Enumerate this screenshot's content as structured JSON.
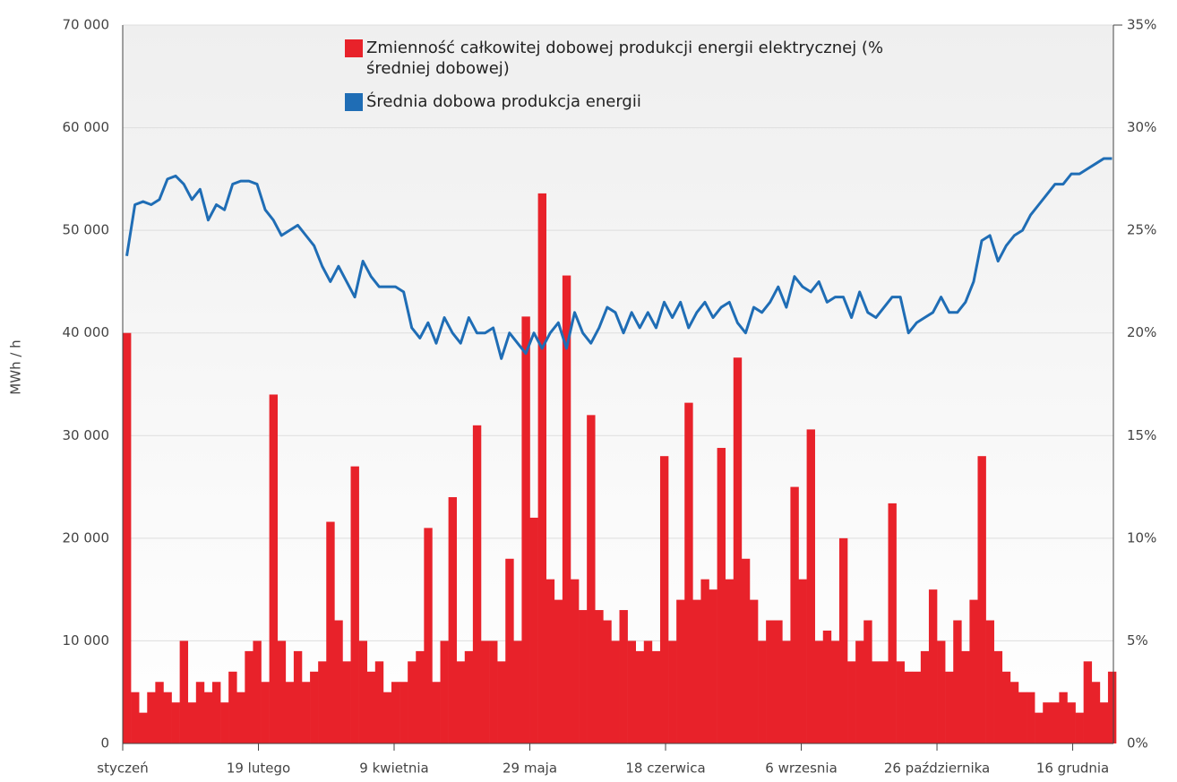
{
  "chart_data": {
    "type": "bar-line",
    "y_label": "MWh / h",
    "xlim": [
      0,
      365
    ],
    "xticks": [
      {
        "value": 0,
        "label": "styczeń"
      },
      {
        "value": 50,
        "label": "19 lutego"
      },
      {
        "value": 100,
        "label": "9 kwietnia"
      },
      {
        "value": 150,
        "label": "29 maja"
      },
      {
        "value": 200,
        "label": "18 czerwica"
      },
      {
        "value": 250,
        "label": "6 wrzesnia"
      },
      {
        "value": 300,
        "label": "26 października"
      },
      {
        "value": 350,
        "label": "16 grudnia"
      }
    ],
    "ylim": [
      0,
      70000
    ],
    "yticks": [
      {
        "value": 0,
        "label": "0"
      },
      {
        "value": 10000,
        "label": "10 000"
      },
      {
        "value": 20000,
        "label": "20 000"
      },
      {
        "value": 30000,
        "label": "30 000"
      },
      {
        "value": 40000,
        "label": "40 000"
      },
      {
        "value": 50000,
        "label": "50 000"
      },
      {
        "value": 60000,
        "label": "60 000"
      },
      {
        "value": 70000,
        "label": "70 000"
      }
    ],
    "y2lim": [
      0,
      35
    ],
    "y2ticks": [
      {
        "value": 0,
        "label": "0%"
      },
      {
        "value": 5,
        "label": "5%"
      },
      {
        "value": 10,
        "label": "10%"
      },
      {
        "value": 15,
        "label": "15%"
      },
      {
        "value": 20,
        "label": "20%"
      },
      {
        "value": 25,
        "label": "25%"
      },
      {
        "value": 30,
        "label": "30%"
      },
      {
        "value": 35,
        "label": "35%"
      }
    ],
    "grid": true,
    "x": [
      0,
      3,
      6,
      9,
      12,
      15,
      18,
      21,
      24,
      27,
      30,
      33,
      36,
      39,
      42,
      45,
      48,
      51,
      54,
      57,
      60,
      63,
      66,
      69,
      72,
      75,
      78,
      81,
      84,
      87,
      90,
      93,
      96,
      99,
      102,
      105,
      108,
      111,
      114,
      117,
      120,
      123,
      126,
      129,
      132,
      135,
      138,
      141,
      144,
      147,
      150,
      153,
      156,
      159,
      162,
      165,
      168,
      171,
      174,
      177,
      180,
      183,
      186,
      189,
      192,
      195,
      198,
      201,
      204,
      207,
      210,
      213,
      216,
      219,
      222,
      225,
      228,
      231,
      234,
      237,
      240,
      243,
      246,
      249,
      252,
      255,
      258,
      261,
      264,
      267,
      270,
      273,
      276,
      279,
      282,
      285,
      288,
      291,
      294,
      297,
      300,
      303,
      306,
      309,
      312,
      315,
      318,
      321,
      324,
      327,
      330,
      333,
      336,
      339,
      342,
      345,
      348,
      351,
      354,
      357,
      360,
      363
    ],
    "series": [
      {
        "name": "Zmienność całkowitej dobowej produkcji energii elektrycznej (% średniej dobowej)",
        "color": "#e8222a",
        "axis": "y2",
        "kind": "bar",
        "values": [
          20,
          2.5,
          1.5,
          2.5,
          3,
          2.5,
          2,
          5,
          2,
          3,
          2.5,
          3,
          2,
          3.5,
          2.5,
          4.5,
          5,
          3,
          17,
          5,
          3,
          4.5,
          3,
          3.5,
          4,
          10.8,
          6,
          4,
          13.5,
          5,
          3.5,
          4,
          2.5,
          3,
          3,
          4,
          4.5,
          10.5,
          3,
          5,
          12,
          4,
          4.5,
          15.5,
          5,
          5,
          4,
          9,
          5,
          20.8,
          11,
          26.8,
          8,
          7,
          22.8,
          8,
          6.5,
          16,
          6.5,
          6,
          5,
          6.5,
          5,
          4.5,
          5,
          4.5,
          14,
          5,
          7,
          16.6,
          7,
          8,
          7.5,
          14.4,
          8,
          18.8,
          9,
          7,
          5,
          6,
          6,
          5,
          12.5,
          8,
          15.3,
          5,
          5.5,
          5,
          10,
          4,
          5,
          6,
          4,
          4,
          11.7,
          4,
          3.5,
          3.5,
          4.5,
          7.5,
          5,
          3.5,
          6,
          4.5,
          7,
          14,
          6,
          4.5,
          3.5,
          3,
          2.5,
          2.5,
          1.5,
          2,
          2,
          2.5,
          2,
          1.5,
          4,
          3,
          2,
          3.5
        ]
      },
      {
        "name": "Średnia dobowa produkcja energii",
        "color": "#1f6db5",
        "axis": "y",
        "kind": "line",
        "values": [
          47500,
          52500,
          52800,
          52500,
          53000,
          55000,
          55300,
          54500,
          53000,
          54000,
          51000,
          52500,
          52000,
          54500,
          54800,
          54800,
          54500,
          52000,
          51000,
          49500,
          50000,
          50500,
          49500,
          48500,
          46500,
          45000,
          46500,
          45000,
          43500,
          47000,
          45500,
          44500,
          44500,
          44500,
          44000,
          40500,
          39500,
          41000,
          39000,
          41500,
          40000,
          39000,
          41500,
          40000,
          40000,
          40500,
          37500,
          40000,
          39000,
          38000,
          40000,
          38500,
          40000,
          41000,
          38500,
          42000,
          40000,
          39000,
          40500,
          42500,
          42000,
          40000,
          42000,
          40500,
          42000,
          40500,
          43000,
          41500,
          43000,
          40500,
          42000,
          43000,
          41500,
          42500,
          43000,
          41000,
          40000,
          42500,
          42000,
          43000,
          44500,
          42500,
          45500,
          44500,
          44000,
          45000,
          43000,
          43500,
          43500,
          41500,
          44000,
          42000,
          41500,
          42500,
          43500,
          43500,
          40000,
          41000,
          41500,
          42000,
          43500,
          42000,
          42000,
          43000,
          45000,
          49000,
          49500,
          47000,
          48500,
          49500,
          50000,
          51500,
          52500,
          53500,
          54500,
          54500,
          55500,
          55500,
          56000,
          56500,
          57000,
          57000
        ]
      }
    ]
  }
}
